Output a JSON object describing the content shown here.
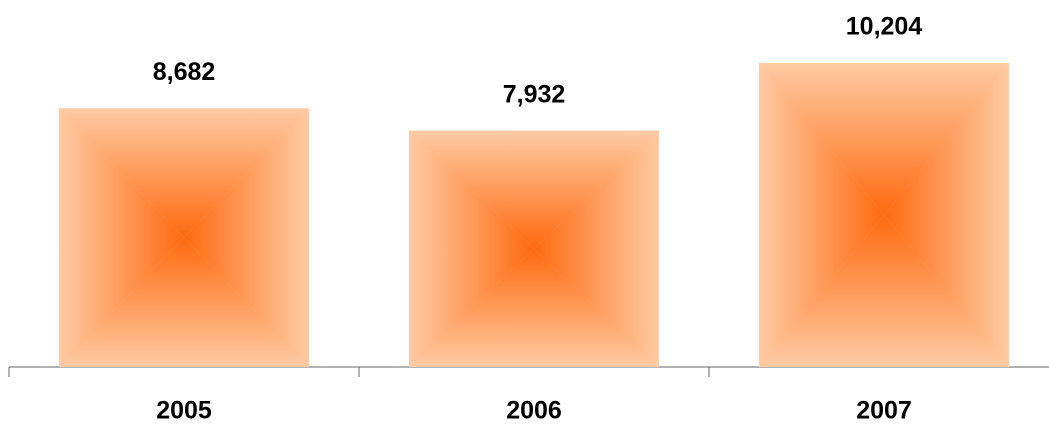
{
  "chart_data": {
    "type": "bar",
    "categories": [
      "2005",
      "2006",
      "2007"
    ],
    "values": [
      8682,
      7932,
      10204
    ],
    "value_labels": [
      "8,682",
      "7,932",
      "10,204"
    ],
    "color": "#ffcba4"
  }
}
